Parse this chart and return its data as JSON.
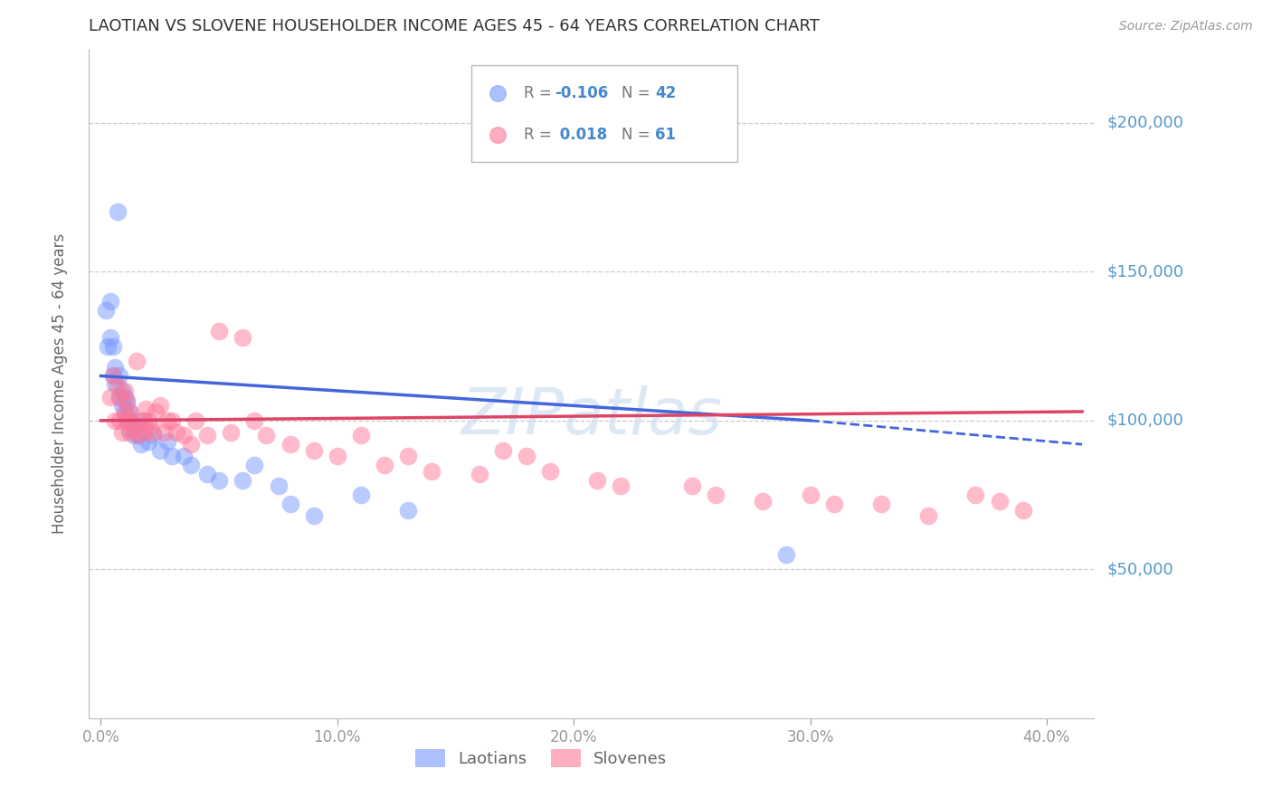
{
  "title": "LAOTIAN VS SLOVENE HOUSEHOLDER INCOME AGES 45 - 64 YEARS CORRELATION CHART",
  "source": "Source: ZipAtlas.com",
  "ylabel": "Householder Income Ages 45 - 64 years",
  "xlabel_ticks": [
    "0.0%",
    "10.0%",
    "20.0%",
    "30.0%",
    "40.0%"
  ],
  "xlabel_vals": [
    0.0,
    0.1,
    0.2,
    0.3,
    0.4
  ],
  "ytick_labels": [
    "$50,000",
    "$100,000",
    "$150,000",
    "$200,000"
  ],
  "ytick_vals": [
    50000,
    100000,
    150000,
    200000
  ],
  "ylim": [
    0,
    225000
  ],
  "xlim": [
    -0.005,
    0.42
  ],
  "legend_laotian_R": "-0.106",
  "legend_laotian_N": "42",
  "legend_slovene_R": "0.018",
  "legend_slovene_N": "61",
  "laotian_color": "#7799ff",
  "slovene_color": "#ff7799",
  "trendline_laotian_color": "#4466dd",
  "trendline_slovene_color": "#dd4466",
  "watermark_color": "#ccddf0",
  "background_color": "#ffffff",
  "grid_color": "#cccccc",
  "laotian_x": [
    0.002,
    0.003,
    0.004,
    0.004,
    0.005,
    0.005,
    0.006,
    0.006,
    0.007,
    0.008,
    0.008,
    0.009,
    0.009,
    0.01,
    0.01,
    0.011,
    0.011,
    0.012,
    0.012,
    0.013,
    0.014,
    0.015,
    0.016,
    0.017,
    0.018,
    0.02,
    0.022,
    0.025,
    0.028,
    0.03,
    0.035,
    0.038,
    0.045,
    0.05,
    0.06,
    0.065,
    0.075,
    0.08,
    0.09,
    0.11,
    0.13,
    0.29
  ],
  "laotian_y": [
    137000,
    125000,
    128000,
    140000,
    115000,
    125000,
    112000,
    118000,
    170000,
    108000,
    115000,
    105000,
    110000,
    102000,
    108000,
    100000,
    106000,
    97000,
    103000,
    100000,
    95000,
    98000,
    95000,
    92000,
    100000,
    93000,
    95000,
    90000,
    93000,
    88000,
    88000,
    85000,
    82000,
    80000,
    80000,
    85000,
    78000,
    72000,
    68000,
    75000,
    70000,
    55000
  ],
  "slovene_x": [
    0.004,
    0.005,
    0.006,
    0.007,
    0.008,
    0.008,
    0.009,
    0.01,
    0.01,
    0.011,
    0.011,
    0.012,
    0.012,
    0.013,
    0.014,
    0.015,
    0.016,
    0.017,
    0.018,
    0.019,
    0.02,
    0.021,
    0.022,
    0.023,
    0.025,
    0.027,
    0.028,
    0.03,
    0.032,
    0.035,
    0.038,
    0.04,
    0.045,
    0.05,
    0.055,
    0.06,
    0.065,
    0.07,
    0.08,
    0.09,
    0.1,
    0.11,
    0.12,
    0.13,
    0.14,
    0.16,
    0.17,
    0.18,
    0.19,
    0.21,
    0.22,
    0.25,
    0.26,
    0.28,
    0.3,
    0.31,
    0.33,
    0.35,
    0.37,
    0.38,
    0.39
  ],
  "slovene_y": [
    108000,
    115000,
    100000,
    112000,
    100000,
    108000,
    96000,
    103000,
    110000,
    100000,
    107000,
    96000,
    103000,
    100000,
    97000,
    120000,
    95000,
    100000,
    96000,
    104000,
    100000,
    98000,
    96000,
    103000,
    105000,
    96000,
    100000,
    100000,
    96000,
    95000,
    92000,
    100000,
    95000,
    130000,
    96000,
    128000,
    100000,
    95000,
    92000,
    90000,
    88000,
    95000,
    85000,
    88000,
    83000,
    82000,
    90000,
    88000,
    83000,
    80000,
    78000,
    78000,
    75000,
    73000,
    75000,
    72000,
    72000,
    68000,
    75000,
    73000,
    70000
  ],
  "trendline_laotian_x0": 0.0,
  "trendline_laotian_y0": 115000,
  "trendline_laotian_x1": 0.3,
  "trendline_laotian_y1": 100000,
  "trendline_laotian_dash_x0": 0.3,
  "trendline_laotian_dash_y0": 100000,
  "trendline_laotian_dash_x1": 0.415,
  "trendline_laotian_dash_y1": 92000,
  "trendline_slovene_x0": 0.0,
  "trendline_slovene_y0": 100000,
  "trendline_slovene_x1": 0.415,
  "trendline_slovene_y1": 103000
}
